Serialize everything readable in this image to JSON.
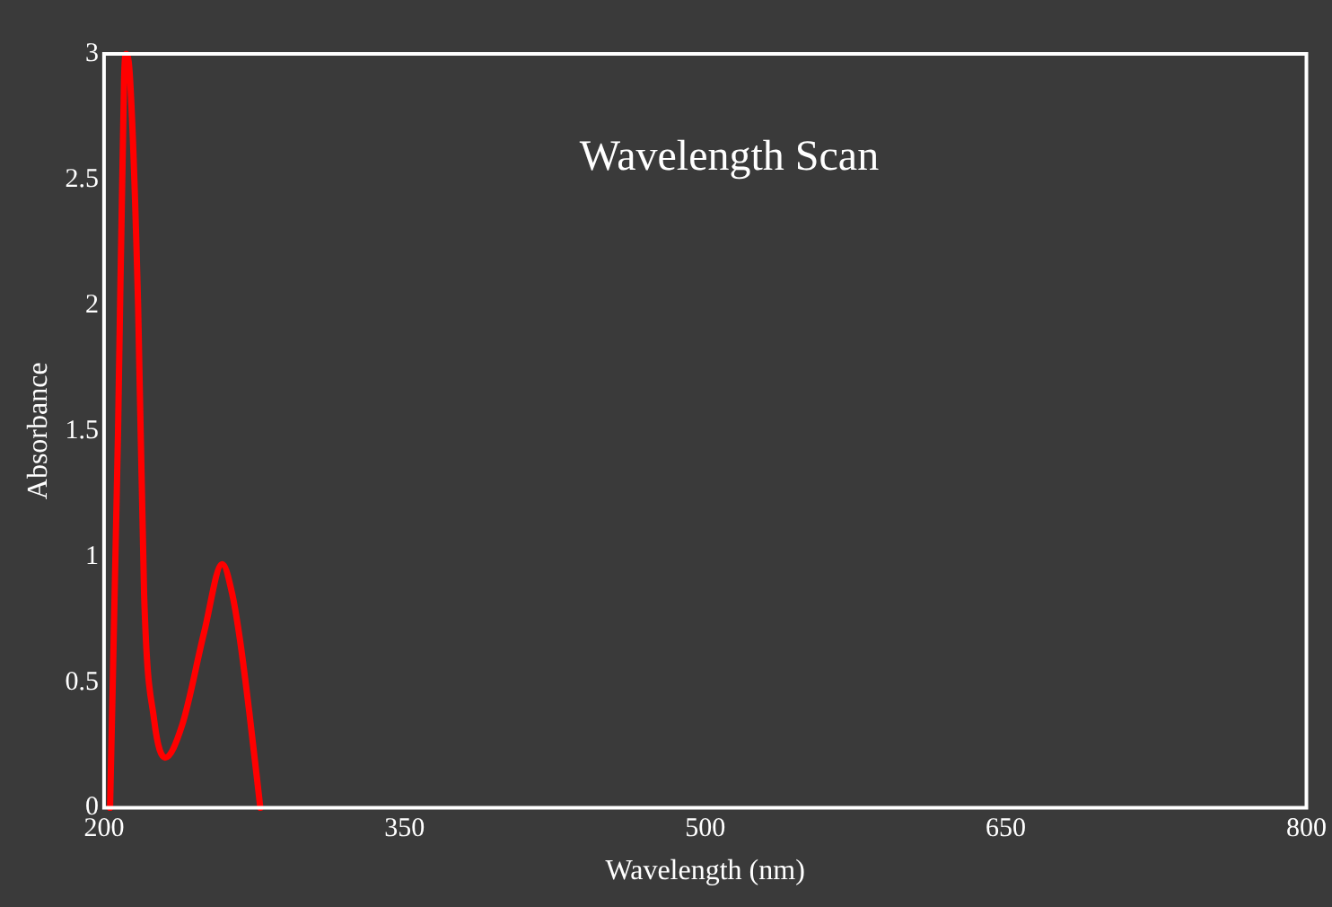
{
  "chart_data": {
    "type": "line",
    "title": "Wavelength Scan",
    "xlabel": "Wavelength (nm)",
    "ylabel": "Absorbance",
    "x": [
      203,
      207,
      210,
      211,
      213,
      217,
      220,
      225,
      230.5,
      239,
      250,
      259,
      264,
      268,
      272.5,
      278
    ],
    "series": [
      {
        "color": "#ff0000",
        "values": [
          0,
          1.5,
          2.9,
          3,
          2.9,
          2.0,
          0.85,
          0.35,
          0.2,
          0.33,
          0.7,
          0.97,
          0.85,
          0.66,
          0.38,
          0
        ]
      }
    ],
    "xlim": [
      200,
      800
    ],
    "xticks": [
      200,
      350,
      500,
      650,
      800
    ],
    "ylim": [
      0,
      3
    ],
    "yticks": [
      0,
      0.5,
      1,
      1.5,
      2,
      2.5,
      3
    ],
    "grid": false,
    "legend": false,
    "marker": "none",
    "line_style": "solid"
  }
}
